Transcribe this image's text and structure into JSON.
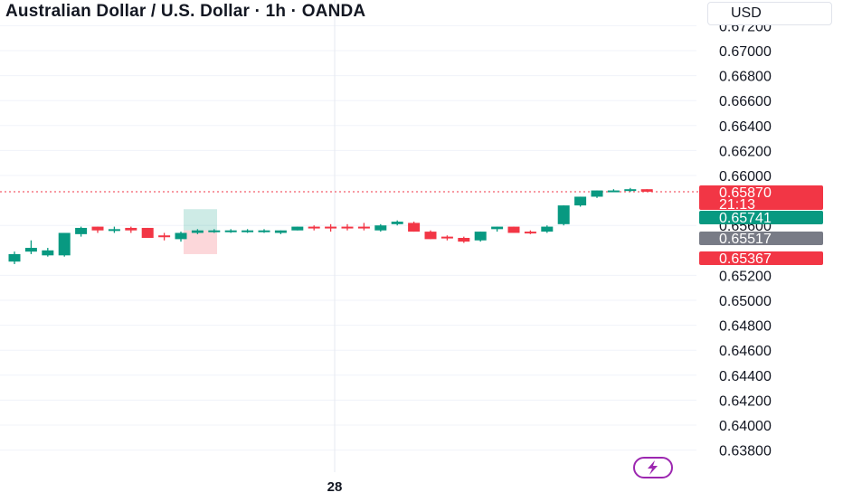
{
  "header": {
    "title": "Australian Dollar / U.S. Dollar · 1h · OANDA",
    "currency": "USD"
  },
  "chart_data": {
    "type": "candlestick",
    "title": "Australian Dollar / U.S. Dollar · 1h · OANDA",
    "symbol": "AUDUSD",
    "interval": "1h",
    "source": "OANDA",
    "y_axis": {
      "side": "right",
      "range": [
        0.6376,
        0.6726
      ],
      "ticks": [
        "0.67200",
        "0.67000",
        "0.66800",
        "0.66600",
        "0.66400",
        "0.66200",
        "0.66000",
        "0.65600",
        "0.65200",
        "0.65000",
        "0.64800",
        "0.64600",
        "0.64400",
        "0.64200",
        "0.64000",
        "0.63800"
      ]
    },
    "x_axis": {
      "ticks": [
        "28"
      ]
    },
    "grid": true,
    "candles": [
      {
        "o": 0.6531,
        "h": 0.6539,
        "l": 0.6529,
        "c": 0.6537
      },
      {
        "o": 0.6539,
        "h": 0.6548,
        "l": 0.6537,
        "c": 0.6542
      },
      {
        "o": 0.6536,
        "h": 0.6542,
        "l": 0.6535,
        "c": 0.654
      },
      {
        "o": 0.6536,
        "h": 0.6554,
        "l": 0.6535,
        "c": 0.6554
      },
      {
        "o": 0.6553,
        "h": 0.6559,
        "l": 0.6551,
        "c": 0.6558
      },
      {
        "o": 0.6559,
        "h": 0.6559,
        "l": 0.6554,
        "c": 0.6556
      },
      {
        "o": 0.6556,
        "h": 0.6559,
        "l": 0.6554,
        "c": 0.6557
      },
      {
        "o": 0.6558,
        "h": 0.6559,
        "l": 0.6554,
        "c": 0.6556
      },
      {
        "o": 0.6558,
        "h": 0.6558,
        "l": 0.655,
        "c": 0.655
      },
      {
        "o": 0.6552,
        "h": 0.6554,
        "l": 0.6548,
        "c": 0.6551
      },
      {
        "o": 0.6549,
        "h": 0.6555,
        "l": 0.6547,
        "c": 0.6554
      },
      {
        "o": 0.6554,
        "h": 0.6557,
        "l": 0.6553,
        "c": 0.6556
      },
      {
        "o": 0.6555,
        "h": 0.6557,
        "l": 0.6554,
        "c": 0.6556
      },
      {
        "o": 0.6555,
        "h": 0.6557,
        "l": 0.6554,
        "c": 0.6556
      },
      {
        "o": 0.6555,
        "h": 0.6557,
        "l": 0.6554,
        "c": 0.6556
      },
      {
        "o": 0.6555,
        "h": 0.6557,
        "l": 0.6554,
        "c": 0.6556
      },
      {
        "o": 0.6554,
        "h": 0.6556,
        "l": 0.6553,
        "c": 0.6556
      },
      {
        "o": 0.6556,
        "h": 0.6559,
        "l": 0.6556,
        "c": 0.6559
      },
      {
        "o": 0.6559,
        "h": 0.656,
        "l": 0.6556,
        "c": 0.6558
      },
      {
        "o": 0.6559,
        "h": 0.6561,
        "l": 0.6555,
        "c": 0.6558
      },
      {
        "o": 0.6559,
        "h": 0.6561,
        "l": 0.6556,
        "c": 0.6558
      },
      {
        "o": 0.6559,
        "h": 0.6562,
        "l": 0.6556,
        "c": 0.6558
      },
      {
        "o": 0.6556,
        "h": 0.6561,
        "l": 0.6555,
        "c": 0.656
      },
      {
        "o": 0.6561,
        "h": 0.6564,
        "l": 0.656,
        "c": 0.6563
      },
      {
        "o": 0.6562,
        "h": 0.6563,
        "l": 0.6555,
        "c": 0.6555
      },
      {
        "o": 0.6555,
        "h": 0.6556,
        "l": 0.6549,
        "c": 0.6549
      },
      {
        "o": 0.6551,
        "h": 0.6552,
        "l": 0.6548,
        "c": 0.655
      },
      {
        "o": 0.655,
        "h": 0.6551,
        "l": 0.6546,
        "c": 0.6547
      },
      {
        "o": 0.6548,
        "h": 0.6555,
        "l": 0.6547,
        "c": 0.6555
      },
      {
        "o": 0.6557,
        "h": 0.6559,
        "l": 0.6555,
        "c": 0.6559
      },
      {
        "o": 0.6559,
        "h": 0.6559,
        "l": 0.6554,
        "c": 0.6554
      },
      {
        "o": 0.6555,
        "h": 0.6556,
        "l": 0.6553,
        "c": 0.6554
      },
      {
        "o": 0.6555,
        "h": 0.656,
        "l": 0.6554,
        "c": 0.6559
      },
      {
        "o": 0.6561,
        "h": 0.6576,
        "l": 0.656,
        "c": 0.6576
      },
      {
        "o": 0.6576,
        "h": 0.6583,
        "l": 0.6575,
        "c": 0.6583
      },
      {
        "o": 0.6583,
        "h": 0.6588,
        "l": 0.6582,
        "c": 0.6588
      },
      {
        "o": 0.6588,
        "h": 0.6589,
        "l": 0.6587,
        "c": 0.6588
      },
      {
        "o": 0.6588,
        "h": 0.659,
        "l": 0.6587,
        "c": 0.6589
      },
      {
        "o": 0.6589,
        "h": 0.6589,
        "l": 0.6587,
        "c": 0.6587
      }
    ],
    "position_tool": {
      "entry": 0.6556,
      "target": 0.6573,
      "stop": 0.6537
    },
    "price_labels": [
      {
        "value": "0.65870",
        "sub": "21:13",
        "color": "#f23645"
      },
      {
        "value": "0.65741",
        "color": "#089981"
      },
      {
        "value": "0.65517",
        "color": "#787b86"
      },
      {
        "value": "0.65367",
        "color": "#f23645"
      }
    ],
    "current_price": 0.6587,
    "colors": {
      "up": "#089981",
      "down": "#f23645"
    }
  }
}
